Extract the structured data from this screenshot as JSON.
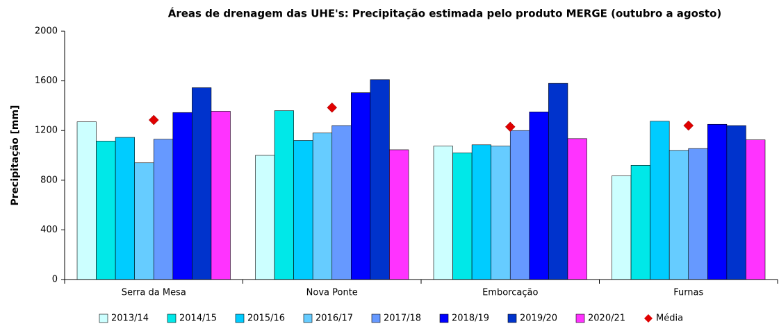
{
  "chart_data": {
    "type": "bar",
    "title": "Áreas de drenagem das UHE's: Precipitação estimada pelo produto MERGE (outubro a agosto)",
    "y_label": "Precipitação [mm]",
    "categories": [
      "Serra da Mesa",
      "Nova Ponte",
      "Emborcação",
      "Furnas"
    ],
    "series": [
      {
        "name": "2013/14",
        "color": "#ccffff",
        "values": [
          1270,
          1000,
          1075,
          835
        ]
      },
      {
        "name": "2014/15",
        "color": "#00e8e8",
        "values": [
          1115,
          1360,
          1020,
          920
        ]
      },
      {
        "name": "2015/16",
        "color": "#00ccff",
        "values": [
          1145,
          1120,
          1085,
          1275
        ]
      },
      {
        "name": "2016/17",
        "color": "#66ccff",
        "values": [
          940,
          1180,
          1075,
          1040
        ]
      },
      {
        "name": "2017/18",
        "color": "#6699ff",
        "values": [
          1130,
          1240,
          1200,
          1055
        ]
      },
      {
        "name": "2018/19",
        "color": "#0000ff",
        "values": [
          1345,
          1505,
          1350,
          1250
        ]
      },
      {
        "name": "2019/20",
        "color": "#0033cc",
        "values": [
          1545,
          1610,
          1580,
          1240
        ]
      },
      {
        "name": "2020/21",
        "color": "#ff33ff",
        "values": [
          1355,
          1045,
          1135,
          1125
        ]
      },
      {
        "name": "Média",
        "color": "#e00000",
        "type": "scatter",
        "values": [
          1285,
          1385,
          1230,
          1240
        ]
      }
    ],
    "ylim": [
      0,
      2000
    ],
    "yticks": [
      0,
      400,
      800,
      1200,
      1600,
      2000
    ],
    "grid": false,
    "legend": "bottom"
  }
}
